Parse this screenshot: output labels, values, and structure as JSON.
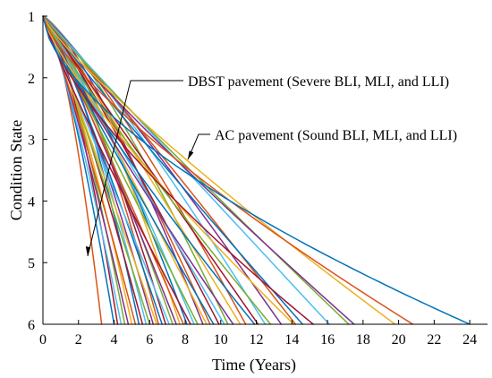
{
  "chart_data": {
    "type": "line",
    "title": "",
    "xlabel": "Time (Years)",
    "ylabel": "Condition State",
    "xlim": [
      0,
      25
    ],
    "ylim": [
      1,
      6
    ],
    "y_inverted": true,
    "grid": false,
    "x_ticks": [
      0,
      2,
      4,
      6,
      8,
      10,
      12,
      14,
      16,
      18,
      20,
      22,
      24
    ],
    "y_ticks": [
      1,
      2,
      3,
      4,
      5,
      6
    ],
    "annotations": [
      {
        "text": "DBST pavement (Severe BLI, MLI, and LLI)",
        "points_to": {
          "x": 2.7,
          "y": 4.9
        }
      },
      {
        "text": "AC pavement (Sound BLI, MLI, and LLI)",
        "points_to": {
          "x": 9.0,
          "y": 3.35
        }
      }
    ],
    "colors": [
      "#0072BD",
      "#D95319",
      "#EDB120",
      "#7E2F8E",
      "#77AC30",
      "#4DBEEE",
      "#A2142F"
    ],
    "series_time_to_state6_years": [
      24.0,
      20.8,
      19.8,
      17.5,
      17.2,
      16.1,
      15.2,
      14.6,
      14.2,
      14.1,
      13.4,
      12.8,
      12.5,
      12.1,
      11.9,
      11.4,
      11.1,
      10.7,
      10.4,
      10.2,
      9.9,
      9.6,
      9.4,
      9.2,
      9.0,
      8.7,
      8.5,
      8.3,
      8.1,
      7.9,
      7.7,
      7.5,
      7.3,
      7.1,
      6.9,
      6.7,
      6.5,
      6.4,
      6.2,
      6.0,
      5.8,
      5.6,
      5.4,
      5.2,
      5.0,
      4.8,
      4.6,
      4.4,
      4.2,
      4.0,
      3.3
    ],
    "series_shape_exponent": [
      0.62,
      0.75,
      0.85,
      0.9,
      0.95,
      1.0,
      0.72,
      0.95,
      1.05,
      0.8,
      1.1,
      0.9,
      1.15,
      1.0,
      0.85,
      1.2,
      1.05,
      0.9,
      1.25,
      1.0,
      1.1,
      0.95,
      1.2,
      1.05,
      1.3,
      1.0,
      1.15,
      0.9,
      1.25,
      1.05,
      1.35,
      1.1,
      1.2,
      1.0,
      1.3,
      1.15,
      1.4,
      1.05,
      1.25,
      1.1,
      1.35,
      1.2,
      1.45,
      1.15,
      1.3,
      1.2,
      1.4,
      1.25,
      1.5,
      1.35,
      1.6
    ]
  }
}
